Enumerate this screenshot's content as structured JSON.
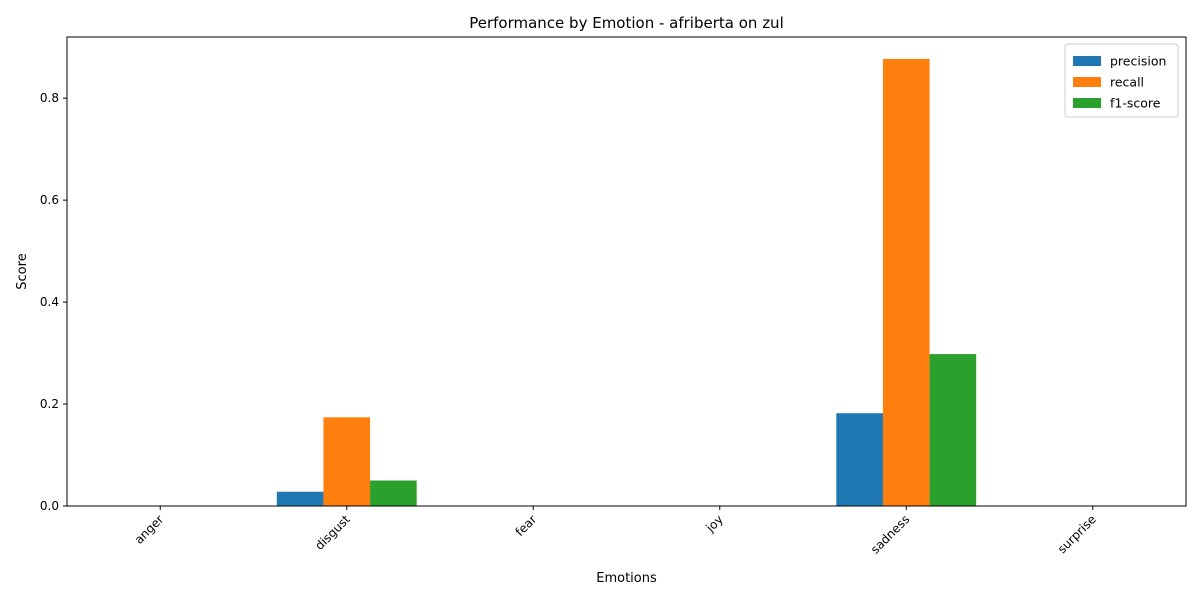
{
  "chart_data": {
    "type": "bar",
    "title": "Performance by Emotion - afriberta on zul",
    "xlabel": "Emotions",
    "ylabel": "Score",
    "categories": [
      "anger",
      "disgust",
      "fear",
      "joy",
      "sadness",
      "surprise"
    ],
    "series": [
      {
        "name": "precision",
        "color": "#1f77b4",
        "values": [
          0,
          0.028,
          0,
          0,
          0.182,
          0
        ]
      },
      {
        "name": "recall",
        "color": "#ff7f0e",
        "values": [
          0,
          0.174,
          0,
          0,
          0.877,
          0
        ]
      },
      {
        "name": "f1-score",
        "color": "#2ca02c",
        "values": [
          0,
          0.05,
          0,
          0,
          0.298,
          0
        ]
      }
    ],
    "yticks": [
      "0.0",
      "0.2",
      "0.4",
      "0.6",
      "0.8"
    ],
    "ylim": [
      0,
      0.92
    ],
    "grid": false,
    "legend_position": "top-right",
    "xtick_rotation": 45
  }
}
